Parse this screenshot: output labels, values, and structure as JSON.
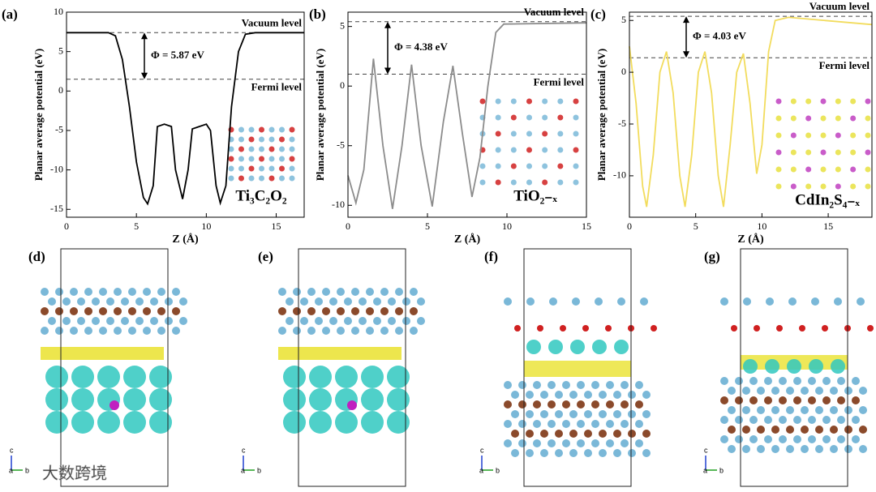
{
  "chart_data": [
    {
      "type": "line",
      "panel_label": "(a)",
      "xlabel": "Z (Å)",
      "ylabel": "Planar average potential (eV)",
      "xlim": [
        0,
        17
      ],
      "ylim": [
        -16,
        10
      ],
      "xticks": [
        0,
        5,
        10,
        15
      ],
      "yticks": [
        -15,
        -10,
        -5,
        0,
        5,
        10
      ],
      "color": "#000000",
      "x": [
        0,
        3,
        3.5,
        4,
        4.5,
        5,
        5.5,
        5.8,
        6.2,
        6.5,
        7,
        7.5,
        7.8,
        8.3,
        8.7,
        9,
        9.5,
        10,
        10.3,
        10.7,
        11,
        11.4,
        11.8,
        12.3,
        12.8,
        13.5,
        17
      ],
      "values": [
        7.4,
        7.4,
        7,
        4,
        -2,
        -9,
        -13.5,
        -14.3,
        -12,
        -4.5,
        -4.2,
        -4.5,
        -10,
        -13.7,
        -10,
        -4.8,
        -4.5,
        -4.2,
        -5,
        -12,
        -14.2,
        -12,
        -2,
        5,
        7.2,
        7.4,
        7.4
      ],
      "vacuum_level": {
        "label": "Vacuum level",
        "value": 7.4
      },
      "fermi_level": {
        "label": "Fermi level",
        "value": 1.5
      },
      "work_function_label": "Φ = 5.87 eV",
      "inset_label": "Ti₃C₂O₂"
    },
    {
      "type": "line",
      "panel_label": "(b)",
      "xlabel": "Z (Å)",
      "ylabel": "Planar average potential (eV)",
      "xlim": [
        0,
        15
      ],
      "ylim": [
        -11,
        6.2
      ],
      "xticks": [
        0,
        5,
        10,
        15
      ],
      "yticks": [
        -10,
        -5,
        0,
        5
      ],
      "color": "#8c8c8c",
      "x": [
        0,
        0.5,
        1,
        1.6,
        2.2,
        2.8,
        3.4,
        4,
        4.6,
        5.3,
        6,
        6.6,
        7.2,
        7.8,
        8.3,
        8.8,
        9.3,
        9.8,
        15
      ],
      "values": [
        -7.5,
        -9.8,
        -7,
        2.3,
        -5,
        -10.3,
        -5,
        1.8,
        -5,
        -10.1,
        -3,
        1.7,
        -4,
        -9.3,
        -6,
        0,
        4.5,
        5.2,
        5.3
      ],
      "vacuum_level": {
        "label": "Vacuum level",
        "value": 5.4
      },
      "fermi_level": {
        "label": "Fermi level",
        "value": 1.0
      },
      "work_function_label": "Φ = 4.38 eV",
      "inset_label": "TiO₂₋ₓ"
    },
    {
      "type": "line",
      "panel_label": "(c)",
      "xlabel": "Z (Å)",
      "ylabel": "Planar average potential (eV)",
      "xlim": [
        0,
        18.3
      ],
      "ylim": [
        -14,
        5.8
      ],
      "xticks": [
        0,
        5,
        10,
        15
      ],
      "yticks": [
        -10,
        -5,
        0,
        5
      ],
      "color": "#f2dc5d",
      "x": [
        0,
        0.5,
        1,
        1.3,
        1.8,
        2.3,
        2.8,
        3.3,
        3.8,
        4.2,
        4.7,
        5.2,
        5.7,
        6.2,
        6.7,
        7.1,
        7.6,
        8.1,
        8.6,
        9.1,
        9.6,
        10,
        10.5,
        11,
        12,
        18.3
      ],
      "values": [
        2.5,
        -3,
        -11,
        -13,
        -8,
        0,
        2,
        -2,
        -10,
        -13,
        -8,
        0,
        2,
        -2,
        -10,
        -13,
        -7,
        0,
        1.8,
        -3,
        -9.8,
        -7,
        2,
        5,
        5.3,
        4.6
      ],
      "vacuum_level": {
        "label": "Vacuum level",
        "value": 5.4
      },
      "fermi_level": {
        "label": "Fermi level",
        "value": 1.4
      },
      "work_function_label": "Φ = 4.03 eV",
      "inset_label": "CdIn₂S₄₋ₓ"
    }
  ],
  "structures": [
    {
      "label": "(d)",
      "axes": [
        "c",
        "a",
        "b"
      ]
    },
    {
      "label": "(e)",
      "axes": [
        "c",
        "a",
        "b"
      ]
    },
    {
      "label": "(f)",
      "axes": [
        "c",
        "a",
        "b"
      ]
    },
    {
      "label": "(g)",
      "axes": [
        "c",
        "a",
        "b"
      ]
    }
  ],
  "watermark": "大数跨境"
}
